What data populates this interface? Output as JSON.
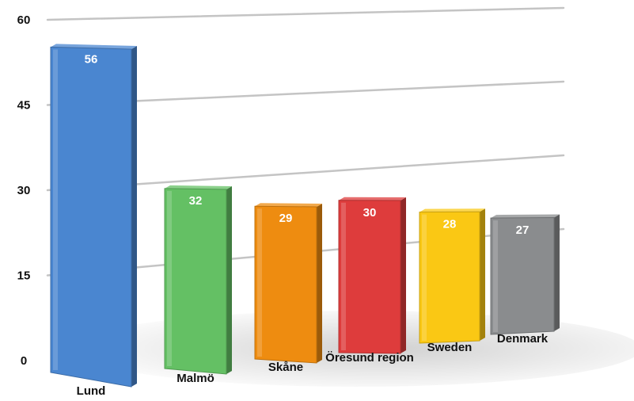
{
  "chart_data": {
    "type": "bar",
    "title": "",
    "xlabel": "",
    "ylabel": "",
    "ylim": [
      0,
      60
    ],
    "yticks": [
      0,
      15,
      30,
      45,
      60
    ],
    "grid": true,
    "categories": [
      "Lund",
      "Malmö",
      "Skåne",
      "Öresund region",
      "Sweden",
      "Denmark"
    ],
    "values": [
      56,
      32,
      29,
      30,
      28,
      27
    ],
    "value_labels": [
      "56",
      "32",
      "29",
      "30",
      "28",
      "27"
    ],
    "ytick_labels": [
      "0",
      "15",
      "30",
      "45",
      "60"
    ],
    "colors": [
      "#4a86d0",
      "#64c064",
      "#ee8c10",
      "#de3c3c",
      "#fac814",
      "#8a8c8e"
    ]
  }
}
